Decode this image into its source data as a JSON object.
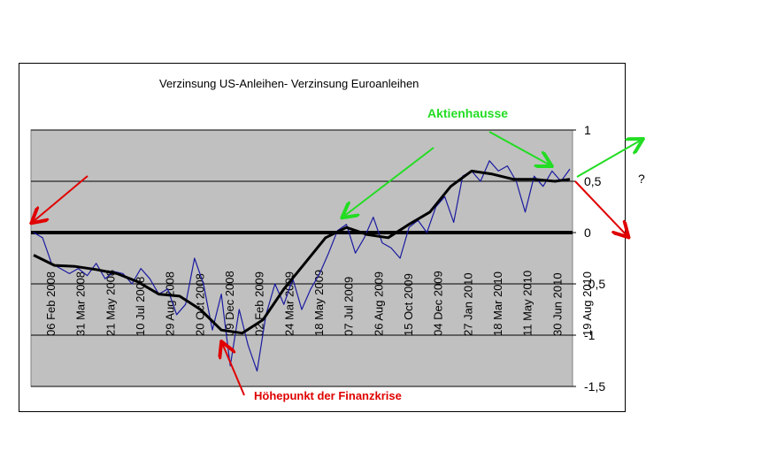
{
  "chart_data": {
    "type": "line",
    "title": "Verzinsung US-Anleihen- Verzinsung Euroanleihen",
    "xlabel": "",
    "ylabel": "",
    "ylim": [
      -1.5,
      1
    ],
    "yticks": [
      "1",
      "0,5",
      "0",
      "-0,5",
      "-1",
      "-1,5"
    ],
    "ytick_values": [
      1,
      0.5,
      0,
      -0.5,
      -1,
      -1.5
    ],
    "x_tick_labels": [
      "06 Feb 2008",
      "31 Mar 2008",
      "21 May 2008",
      "10 Jul 2008",
      "29 Aug 2008",
      "20 Oct 2008",
      "09 Dec 2008",
      "02 Feb 2009",
      "24 Mar 2009",
      "18 May 2009",
      "07 Jul 2009",
      "26 Aug 2009",
      "15 Oct 2009",
      "04 Dec 2009",
      "27 Jan 2010",
      "18 Mar 2010",
      "11 May 2010",
      "30 Jun 2010",
      "19 Aug 2010"
    ],
    "grid": true,
    "series": [
      {
        "name": "",
        "color": "#1a1aa0",
        "x": [
          0,
          0.3,
          0.6,
          0.9,
          1.2,
          1.5,
          1.8,
          2.1,
          2.4,
          2.7,
          3.0,
          3.3,
          3.6,
          3.9,
          4.2,
          4.5,
          4.8,
          5.1,
          5.4,
          5.7,
          6.0,
          6.3,
          6.6,
          6.9,
          7.2,
          7.5,
          7.8,
          8.1,
          8.4,
          8.7,
          9.0,
          9.3,
          9.6,
          9.9,
          10.2,
          10.5,
          10.8,
          11.1,
          11.4,
          11.7,
          12.0,
          12.3,
          12.6,
          12.9,
          13.2,
          13.5,
          13.8,
          14.1,
          14.4,
          14.7,
          15.0,
          15.3,
          15.6,
          15.9,
          16.2,
          16.5,
          16.8,
          17.1,
          17.4,
          17.7,
          18.0
        ],
        "values": [
          0.0,
          -0.05,
          -0.3,
          -0.35,
          -0.4,
          -0.35,
          -0.42,
          -0.3,
          -0.45,
          -0.38,
          -0.4,
          -0.5,
          -0.35,
          -0.45,
          -0.6,
          -0.55,
          -0.8,
          -0.7,
          -0.25,
          -0.5,
          -0.95,
          -0.6,
          -1.3,
          -0.75,
          -1.1,
          -1.35,
          -0.8,
          -0.5,
          -0.7,
          -0.45,
          -0.75,
          -0.55,
          -0.4,
          -0.2,
          0.02,
          0.08,
          -0.2,
          -0.05,
          0.15,
          -0.1,
          -0.15,
          -0.25,
          0.05,
          0.12,
          0.0,
          0.25,
          0.35,
          0.1,
          0.55,
          0.6,
          0.5,
          0.7,
          0.6,
          0.65,
          0.5,
          0.2,
          0.55,
          0.45,
          0.6,
          0.5,
          0.62
        ]
      },
      {
        "name": "",
        "color": "#000000",
        "x": [
          0,
          0.7,
          1.4,
          2.1,
          2.8,
          3.5,
          4.2,
          4.9,
          5.6,
          6.3,
          7.0,
          7.7,
          8.4,
          9.1,
          9.8,
          10.5,
          11.2,
          11.9,
          12.6,
          13.3,
          14.0,
          14.7,
          15.4,
          16.1,
          16.8,
          17.5,
          18.0
        ],
        "values": [
          -0.22,
          -0.32,
          -0.33,
          -0.36,
          -0.4,
          -0.48,
          -0.6,
          -0.62,
          -0.75,
          -0.95,
          -0.98,
          -0.85,
          -0.55,
          -0.3,
          -0.05,
          0.05,
          -0.02,
          -0.05,
          0.08,
          0.2,
          0.45,
          0.6,
          0.57,
          0.52,
          0.52,
          0.5,
          0.52
        ]
      }
    ],
    "annotations": {
      "aktienhausse": "Aktienhausse",
      "hoehepunkt": "Höhepunkt der Finanzkrise",
      "question": "?"
    }
  },
  "colors": {
    "plot_bg": "#c0c0c0",
    "green_arrow": "#22dd22",
    "red_arrow": "#e00000",
    "blue_line": "#1a1aa0",
    "black_line": "#000000"
  }
}
